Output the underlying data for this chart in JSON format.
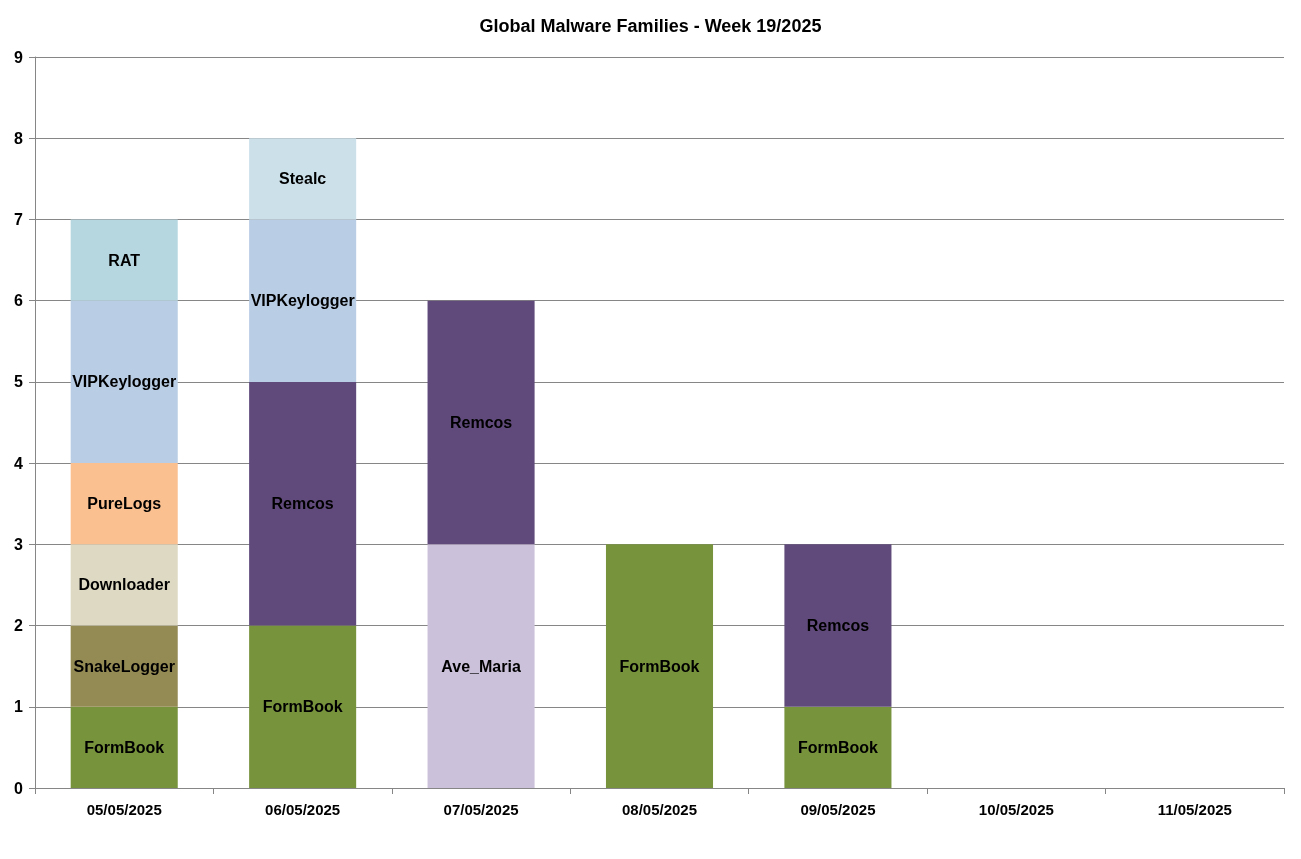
{
  "chart_data": {
    "type": "bar",
    "title": "Global Malware Families - Week 19/2025",
    "stacked": true,
    "legend": false,
    "grid": "y",
    "categories": [
      "05/05/2025",
      "06/05/2025",
      "07/05/2025",
      "08/05/2025",
      "09/05/2025",
      "10/05/2025",
      "11/05/2025"
    ],
    "series": [
      {
        "name": "FormBook",
        "color": "#77933c",
        "values": [
          1,
          2,
          null,
          3,
          1,
          null,
          null
        ]
      },
      {
        "name": "Ave_Maria",
        "color": "#ccc1da",
        "values": [
          null,
          null,
          3,
          null,
          null,
          null,
          null
        ]
      },
      {
        "name": "SnakeLogger",
        "color": "#948a54",
        "values": [
          1,
          null,
          null,
          null,
          null,
          null,
          null
        ]
      },
      {
        "name": "Downloader",
        "color": "#ddd9c3",
        "values": [
          1,
          null,
          null,
          null,
          null,
          null,
          null
        ]
      },
      {
        "name": "PureLogs",
        "color": "#fac090",
        "values": [
          1,
          null,
          null,
          null,
          null,
          null,
          null
        ]
      },
      {
        "name": "Remcos",
        "color": "#604a7b",
        "values": [
          null,
          3,
          3,
          null,
          2,
          null,
          null
        ]
      },
      {
        "name": "VIPKeylogger",
        "color": "#b9cde5",
        "values": [
          2,
          2,
          null,
          null,
          null,
          null,
          null
        ]
      },
      {
        "name": "RAT",
        "color": "#b7d7e0",
        "values": [
          1,
          null,
          null,
          null,
          null,
          null,
          null
        ]
      },
      {
        "name": "Stealc",
        "color": "#cce0ea",
        "values": [
          null,
          1,
          null,
          null,
          null,
          null,
          null
        ]
      }
    ],
    "ylim": [
      0,
      9
    ],
    "yticks": [
      0,
      1,
      2,
      3,
      4,
      5,
      6,
      7,
      8,
      9
    ]
  }
}
